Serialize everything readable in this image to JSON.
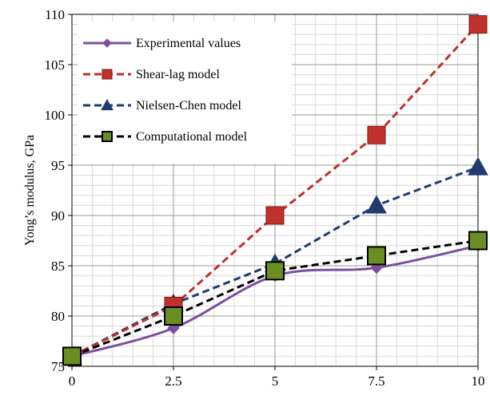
{
  "chart_data": {
    "type": "line",
    "title": "",
    "xlabel": "",
    "ylabel": "Yong’s modulus, GPa",
    "xlim": [
      0,
      10
    ],
    "ylim": [
      75,
      110
    ],
    "x_ticks": [
      0,
      2.5,
      5,
      7.5,
      10
    ],
    "x_tick_labels": [
      "0",
      "2.5",
      "5",
      "7.5",
      "10"
    ],
    "y_ticks": [
      75,
      80,
      85,
      90,
      95,
      100,
      105,
      110
    ],
    "y_tick_labels": [
      "75",
      "80",
      "85",
      "90",
      "95",
      "100",
      "105",
      "110"
    ],
    "grid": true,
    "legend_position": "top-left",
    "x": [
      0,
      2.5,
      5,
      7.5,
      10
    ],
    "series": [
      {
        "name": "Experimental values",
        "values": [
          76,
          78.8,
          84,
          84.8,
          87
        ],
        "color": "#7b4fa0",
        "dash": "solid",
        "marker": "diamond",
        "smooth": true
      },
      {
        "name": "Shear-lag model",
        "values": [
          76,
          81,
          90,
          98,
          109
        ],
        "color": "#c0312b",
        "dash": "dashed",
        "marker": "square",
        "smooth": false
      },
      {
        "name": "Nielsen-Chen model",
        "values": [
          76,
          81.2,
          85.2,
          91,
          94.8
        ],
        "color": "#1f3b70",
        "dash": "dashed",
        "marker": "triangle",
        "smooth": false
      },
      {
        "name": "Computational model",
        "values": [
          76,
          80,
          84.5,
          86,
          87.5
        ],
        "color": "#000000",
        "dash": "dashed",
        "marker": "square-green",
        "smooth": false
      }
    ]
  }
}
